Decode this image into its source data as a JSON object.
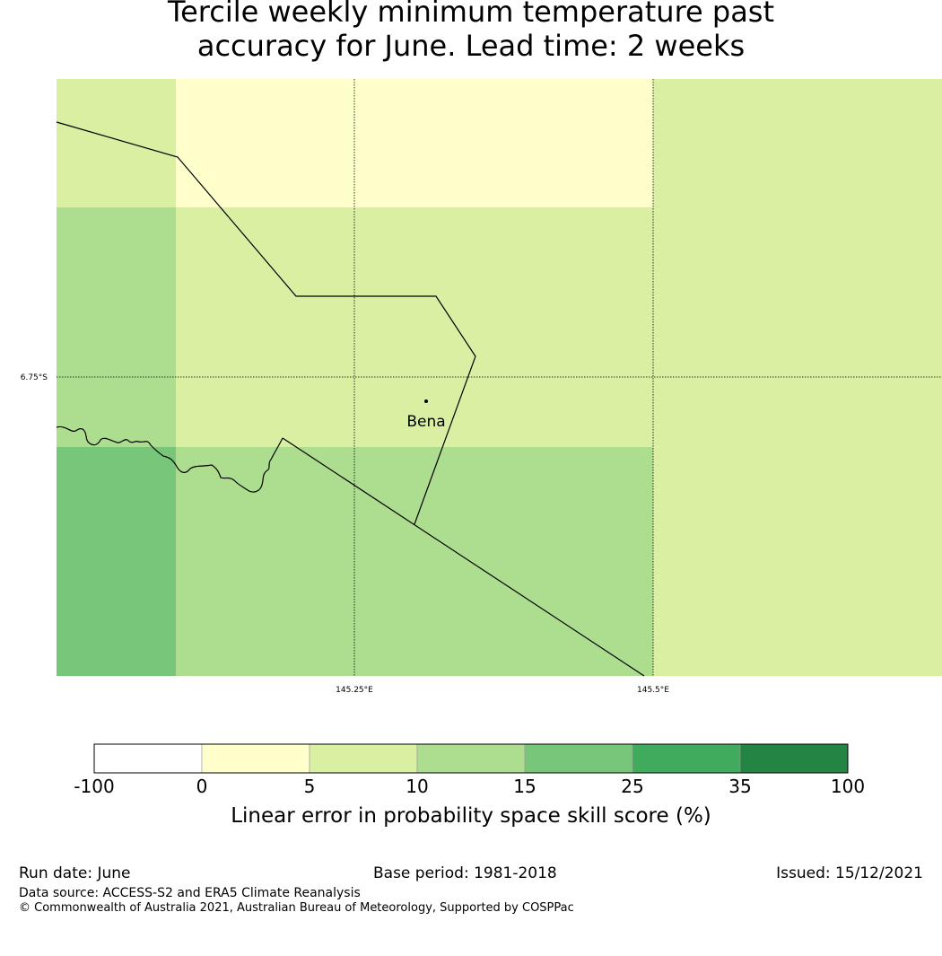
{
  "title": {
    "line1": "Tercile weekly minimum temperature past",
    "line2": "accuracy for June. Lead time: 2 weeks"
  },
  "map": {
    "lat_labels": [
      "6.75°S"
    ],
    "lon_labels": [
      "145.25°E",
      "145.5°E"
    ],
    "place_label": "Bena"
  },
  "colorbar": {
    "ticks": [
      "-100",
      "0",
      "5",
      "10",
      "15",
      "25",
      "35",
      "100"
    ],
    "colors": [
      "#ffffff",
      "#ffffcc",
      "#d9f0a3",
      "#addd8e",
      "#78c679",
      "#41ab5d",
      "#238443"
    ],
    "label": "Linear error in probability space skill score (%)"
  },
  "footer": {
    "run_date": "Run date: June",
    "base_period": "Base period: 1981-2018",
    "issued": "Issued: 15/12/2021",
    "data_source": "Data source: ACCESS-S2 and ERA5 Climate Reanalysis",
    "copyright": "© Commonwealth of Australia 2021, Australian Bureau of Meteorology, Supported by COSPPac"
  }
}
